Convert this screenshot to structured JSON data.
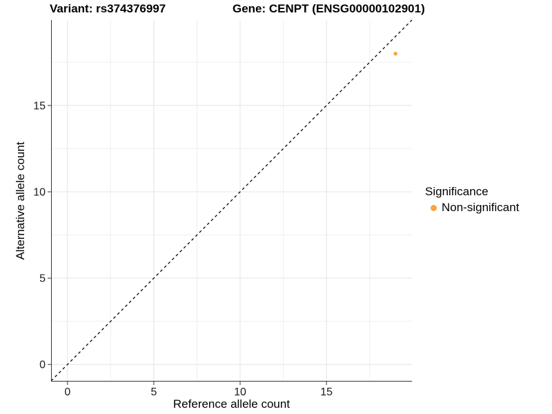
{
  "figure": {
    "title_variant": "Variant: rs374376997",
    "title_gene": "Gene: CENPT (ENSG00000102901)"
  },
  "chart_data": {
    "type": "scatter",
    "xlabel": "Reference allele count",
    "ylabel": "Alternative allele count",
    "xlim": [
      -0.95,
      19.95
    ],
    "ylim": [
      -0.95,
      19.95
    ],
    "x_ticks": [
      0,
      5,
      10,
      15
    ],
    "y_ticks": [
      0,
      5,
      10,
      15
    ],
    "x_minor_ticks": [
      2.5,
      7.5,
      12.5,
      17.5
    ],
    "y_minor_ticks": [
      2.5,
      7.5,
      12.5,
      17.5
    ],
    "grid": true,
    "identity_line": {
      "style": "dashed",
      "color": "#000000",
      "from": [
        -0.95,
        -0.95
      ],
      "to": [
        19.95,
        19.95
      ]
    },
    "series": [
      {
        "name": "Non-significant",
        "color": "#FAA43A",
        "points": [
          {
            "x": 19,
            "y": 18
          }
        ]
      }
    ],
    "legend": {
      "title": "Significance",
      "position": "right",
      "entries": [
        {
          "label": "Non-significant",
          "color": "#FAA43A"
        }
      ]
    }
  }
}
